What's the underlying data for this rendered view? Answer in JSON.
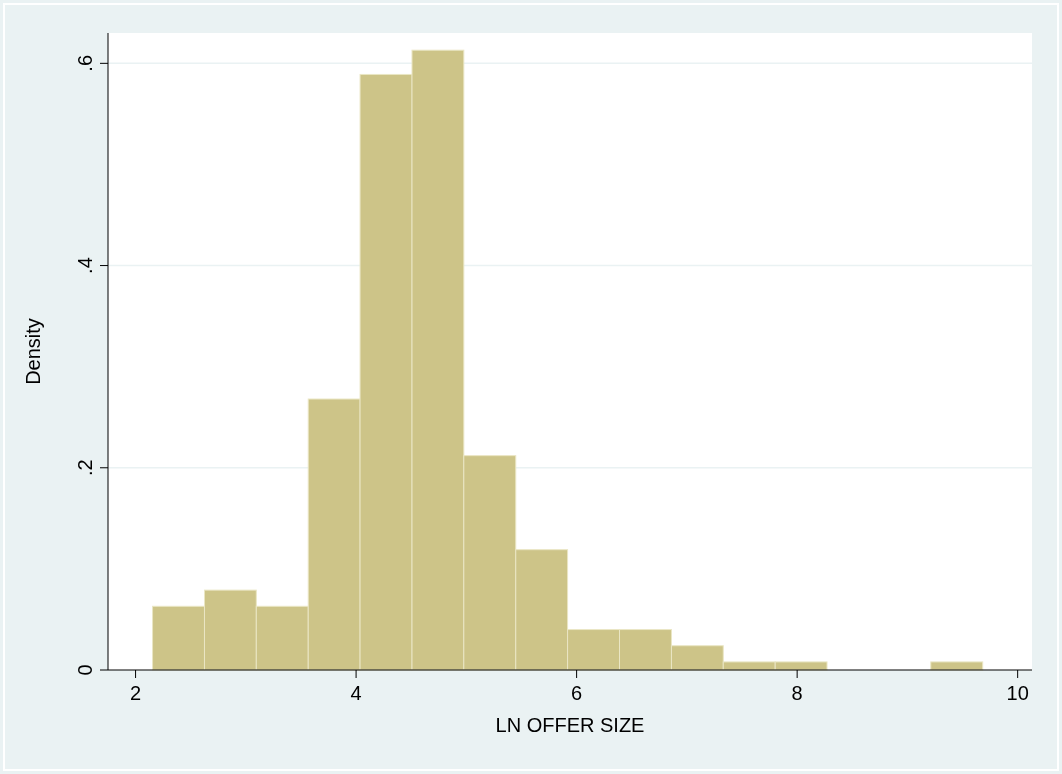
{
  "chart_data": {
    "type": "histogram",
    "xlabel": "LN OFFER SIZE",
    "ylabel": "Density",
    "bins": [
      2.154,
      2.625,
      3.095,
      3.566,
      4.036,
      4.507,
      4.977,
      5.448,
      5.918,
      6.389,
      6.86,
      7.33,
      7.801,
      8.271,
      8.742,
      9.212,
      9.683
    ],
    "values": [
      0.063,
      0.079,
      0.063,
      0.268,
      0.589,
      0.613,
      0.212,
      0.119,
      0.04,
      0.04,
      0.024,
      0.008,
      0.008,
      0,
      0,
      0.008
    ],
    "color": "#cdc488",
    "xlim": [
      1.75,
      10.13
    ],
    "ylim": [
      0,
      0.63
    ],
    "xticks": [
      2,
      4,
      6,
      8,
      10
    ],
    "yticks": [
      0,
      {
        "value": 0.2,
        "label": ".2"
      },
      {
        "value": 0.4,
        "label": ".4"
      },
      {
        "value": 0.6,
        "label": ".6"
      }
    ],
    "grid": "y"
  }
}
